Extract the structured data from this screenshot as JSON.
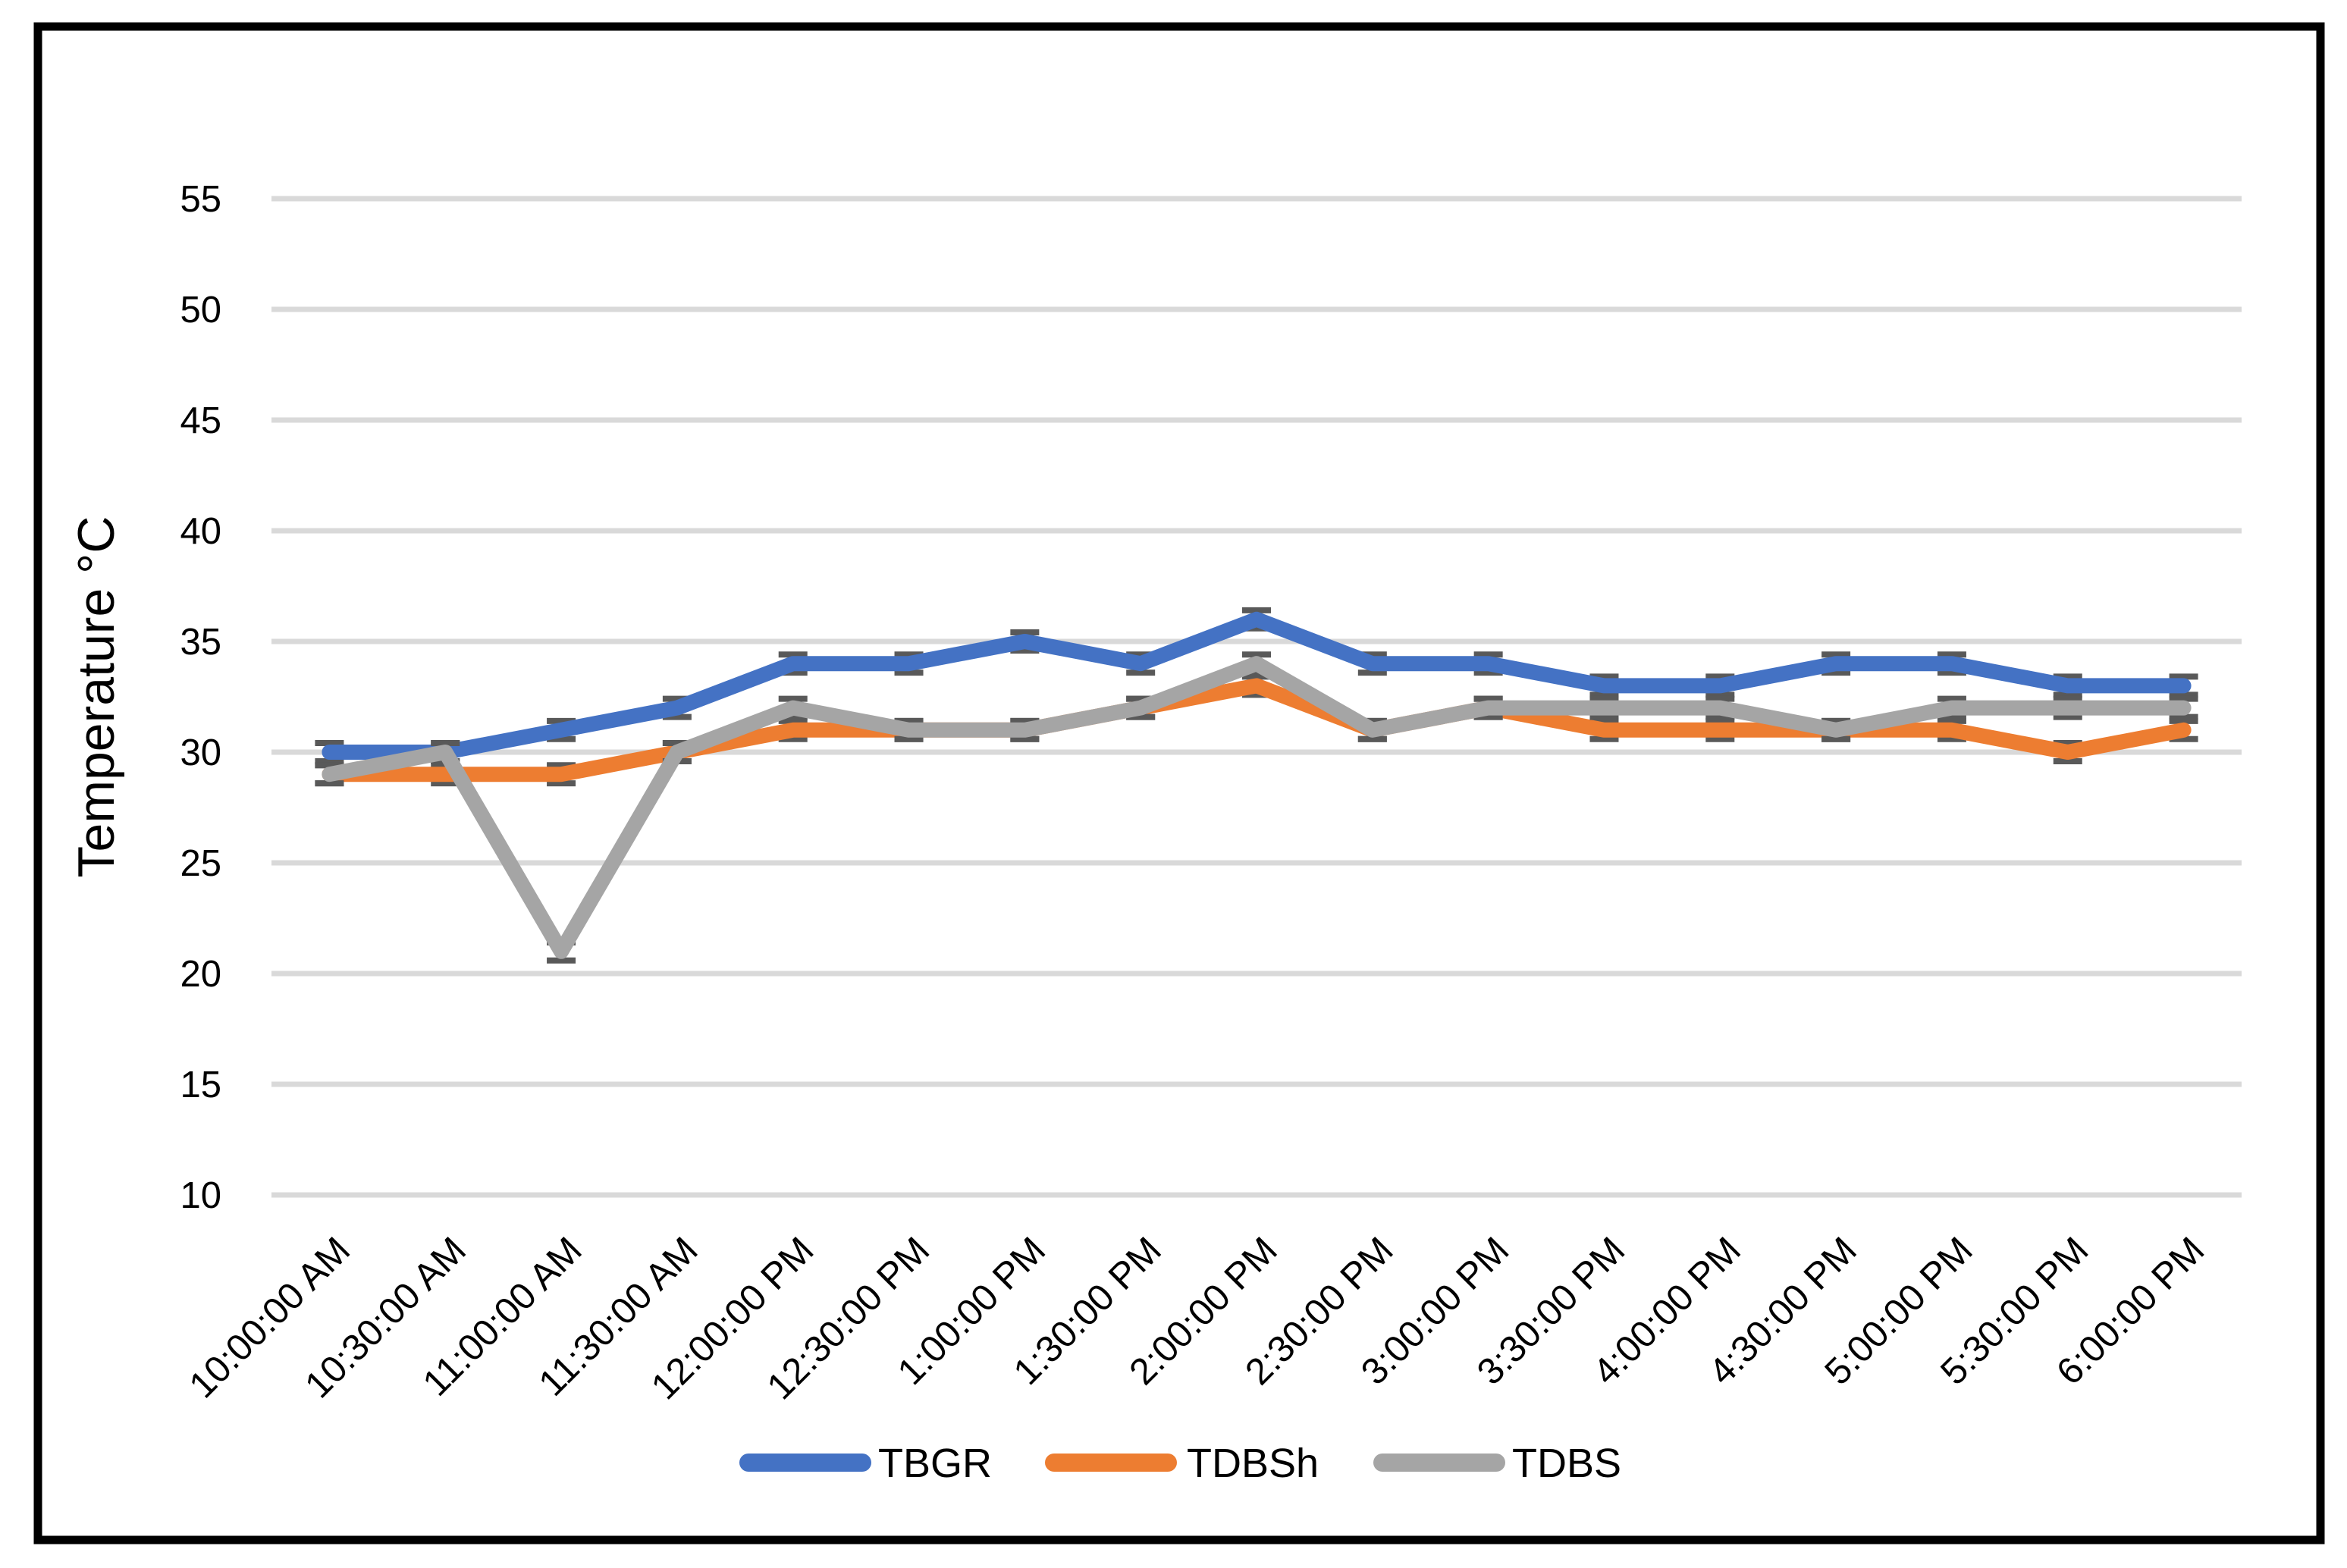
{
  "chart_data": {
    "type": "line",
    "title": "",
    "xlabel": "",
    "ylabel": "Temperature °C",
    "categories": [
      "10:00:00 AM",
      "10:30:00 AM",
      "11:00:00 AM",
      "11:30:00 AM",
      "12:00:00 PM",
      "12:30:00 PM",
      "1:00:00 PM",
      "1:30:00 PM",
      "2:00:00 PM",
      "2:30:00 PM",
      "3:00:00 PM",
      "3:30:00 PM",
      "4:00:00 PM",
      "4:30:00 PM",
      "5:00:00 PM",
      "5:30:00 PM",
      "6:00:00 PM"
    ],
    "series": [
      {
        "name": "TBGR",
        "color": "#4472C4",
        "values": [
          30,
          30,
          31,
          32,
          34,
          34,
          35,
          34,
          36,
          34,
          34,
          33,
          33,
          34,
          34,
          33,
          33
        ]
      },
      {
        "name": "TDBSh",
        "color": "#ED7D31",
        "values": [
          29,
          29,
          29,
          30,
          31,
          31,
          31,
          32,
          33,
          31,
          32,
          31,
          31,
          31,
          31,
          30,
          31
        ]
      },
      {
        "name": "TDBS",
        "color": "#A5A5A5",
        "values": [
          29,
          30,
          21,
          30,
          32,
          31,
          31,
          32,
          34,
          31,
          32,
          32,
          32,
          31,
          32,
          32,
          32
        ]
      }
    ],
    "error_bar_plus_minus": 0.4,
    "y_ticks": [
      10,
      15,
      20,
      25,
      30,
      35,
      40,
      45,
      50,
      55
    ],
    "ylim": [
      10,
      55
    ],
    "grid": "horizontal gridlines on",
    "legend_position": "bottom"
  },
  "colors": {
    "gridline": "#D9D9D9",
    "error_bar": "#595959",
    "axis_text": "#000000",
    "figure_border": "#000000",
    "background": "#FFFFFF"
  }
}
